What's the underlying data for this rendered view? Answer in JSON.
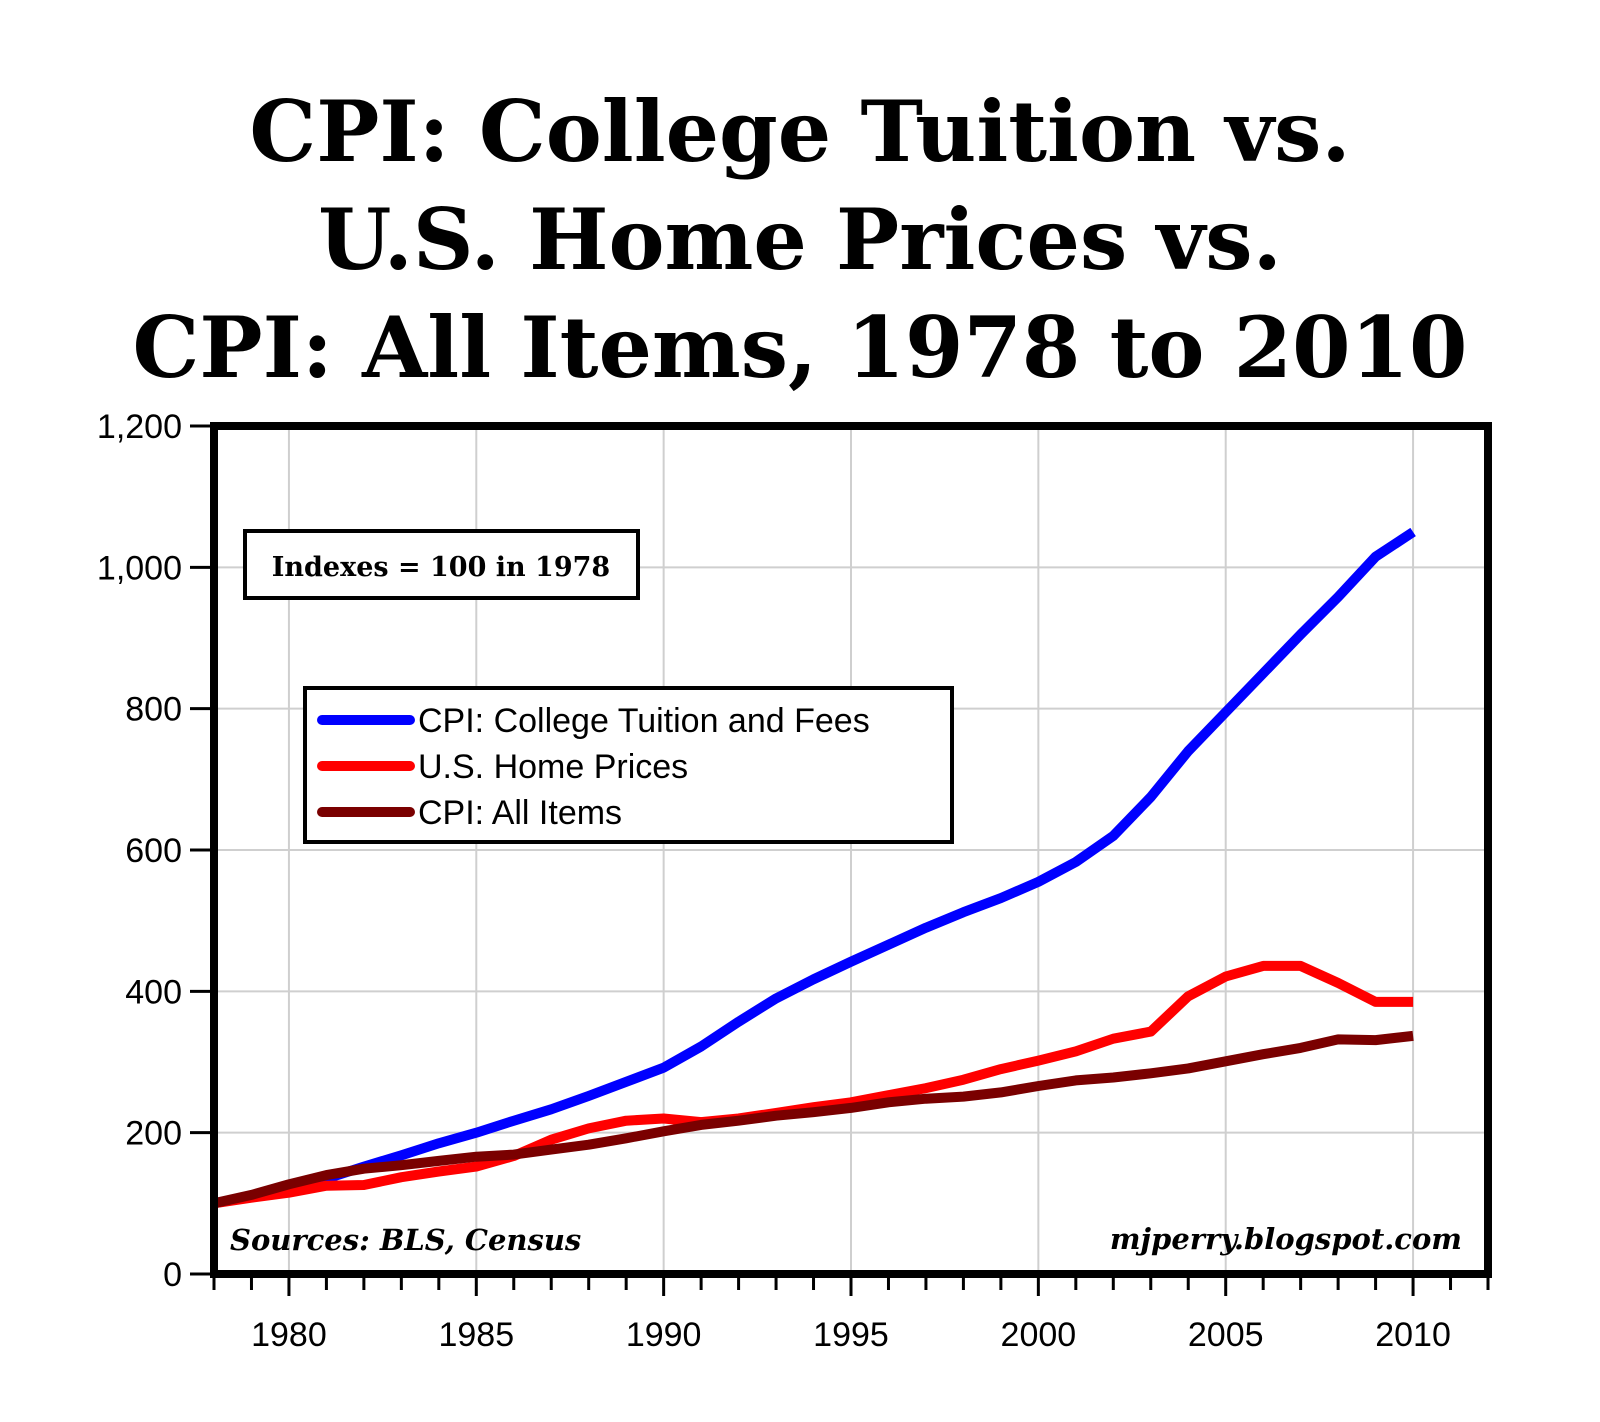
{
  "title_lines": [
    "CPI: College Tuition vs.",
    "U.S. Home Prices vs.",
    "CPI: All Items, 1978 to 2010"
  ],
  "chart_data": {
    "type": "line",
    "title": "CPI: College Tuition vs. U.S. Home Prices vs. CPI: All Items, 1978 to 2010",
    "xlabel": "",
    "ylabel": "",
    "xlim": [
      1978,
      2012
    ],
    "ylim": [
      0,
      1200
    ],
    "x_ticks": [
      1980,
      1985,
      1990,
      1995,
      2000,
      2005,
      2010
    ],
    "y_ticks": [
      0,
      200,
      400,
      600,
      800,
      1000,
      1200
    ],
    "y_tick_labels": [
      "0",
      "200",
      "400",
      "600",
      "800",
      "1,000",
      "1,200"
    ],
    "grid": true,
    "legend_position": "upper-left",
    "annotations": {
      "indexes_note": "Indexes = 100 in 1978",
      "sources": "Sources: BLS, Census",
      "credit": "mjperry.blogspot.com"
    },
    "x": [
      1978,
      1979,
      1980,
      1981,
      1982,
      1983,
      1984,
      1985,
      1986,
      1987,
      1988,
      1989,
      1990,
      1991,
      1992,
      1993,
      1994,
      1995,
      1996,
      1997,
      1998,
      1999,
      2000,
      2001,
      2002,
      2003,
      2004,
      2005,
      2006,
      2007,
      2008,
      2009,
      2010
    ],
    "series": [
      {
        "name": "CPI: College Tuition and Fees",
        "color": "#0000ff",
        "values": [
          100,
          110,
          122,
          135,
          152,
          168,
          185,
          200,
          217,
          233,
          252,
          272,
          292,
          322,
          357,
          390,
          417,
          442,
          466,
          490,
          512,
          532,
          555,
          583,
          620,
          675,
          740,
          795,
          850,
          905,
          958,
          1015,
          1050
        ]
      },
      {
        "name": "U.S. Home Prices",
        "color": "#ff0000",
        "values": [
          100,
          108,
          115,
          125,
          126,
          137,
          145,
          152,
          167,
          190,
          206,
          217,
          220,
          215,
          220,
          228,
          236,
          243,
          253,
          263,
          275,
          290,
          302,
          315,
          333,
          343,
          393,
          421,
          436,
          436,
          412,
          385,
          385
        ]
      },
      {
        "name": "CPI: All Items",
        "color": "#7a0000",
        "values": [
          100,
          112,
          127,
          140,
          149,
          154,
          160,
          166,
          169,
          176,
          183,
          192,
          202,
          211,
          217,
          224,
          229,
          235,
          243,
          248,
          251,
          257,
          266,
          274,
          278,
          284,
          291,
          301,
          311,
          320,
          332,
          331,
          337
        ]
      }
    ]
  }
}
